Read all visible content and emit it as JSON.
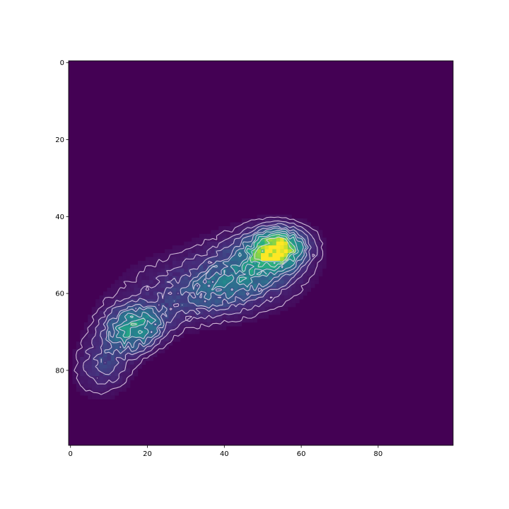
{
  "chart_data": {
    "type": "heatmap",
    "title": "",
    "xlabel": "",
    "ylabel": "",
    "xlim": [
      -0.5,
      99.5
    ],
    "ylim": [
      99.5,
      -0.5
    ],
    "y_inverted": true,
    "grid": false,
    "colormap": "viridis",
    "background_color": "#440154",
    "contour_color": "#e8d6ec",
    "x_ticks": [
      0,
      20,
      40,
      60,
      80
    ],
    "x_tick_labels": [
      "0",
      "20",
      "40",
      "60",
      "80"
    ],
    "y_ticks": [
      0,
      20,
      40,
      60,
      80
    ],
    "y_tick_labels": [
      "0",
      "20",
      "40",
      "60",
      "80"
    ],
    "blobs": [
      {
        "cx": 53,
        "cy": 48,
        "sx": 4.5,
        "sy": 3.2,
        "peak": 1.0
      },
      {
        "cx": 16,
        "cy": 68,
        "sx": 5.0,
        "sy": 4.0,
        "peak": 0.62
      },
      {
        "cx": 34,
        "cy": 58,
        "sx": 14,
        "sy": 6,
        "peak": 0.28
      },
      {
        "cx": 47,
        "cy": 52,
        "sx": 9,
        "sy": 6,
        "peak": 0.3
      },
      {
        "cx": 9,
        "cy": 78,
        "sx": 5,
        "sy": 6,
        "peak": 0.18
      }
    ],
    "contour_levels": [
      0.05,
      0.1,
      0.16,
      0.23,
      0.3,
      0.4,
      0.5,
      0.62,
      0.78
    ]
  }
}
